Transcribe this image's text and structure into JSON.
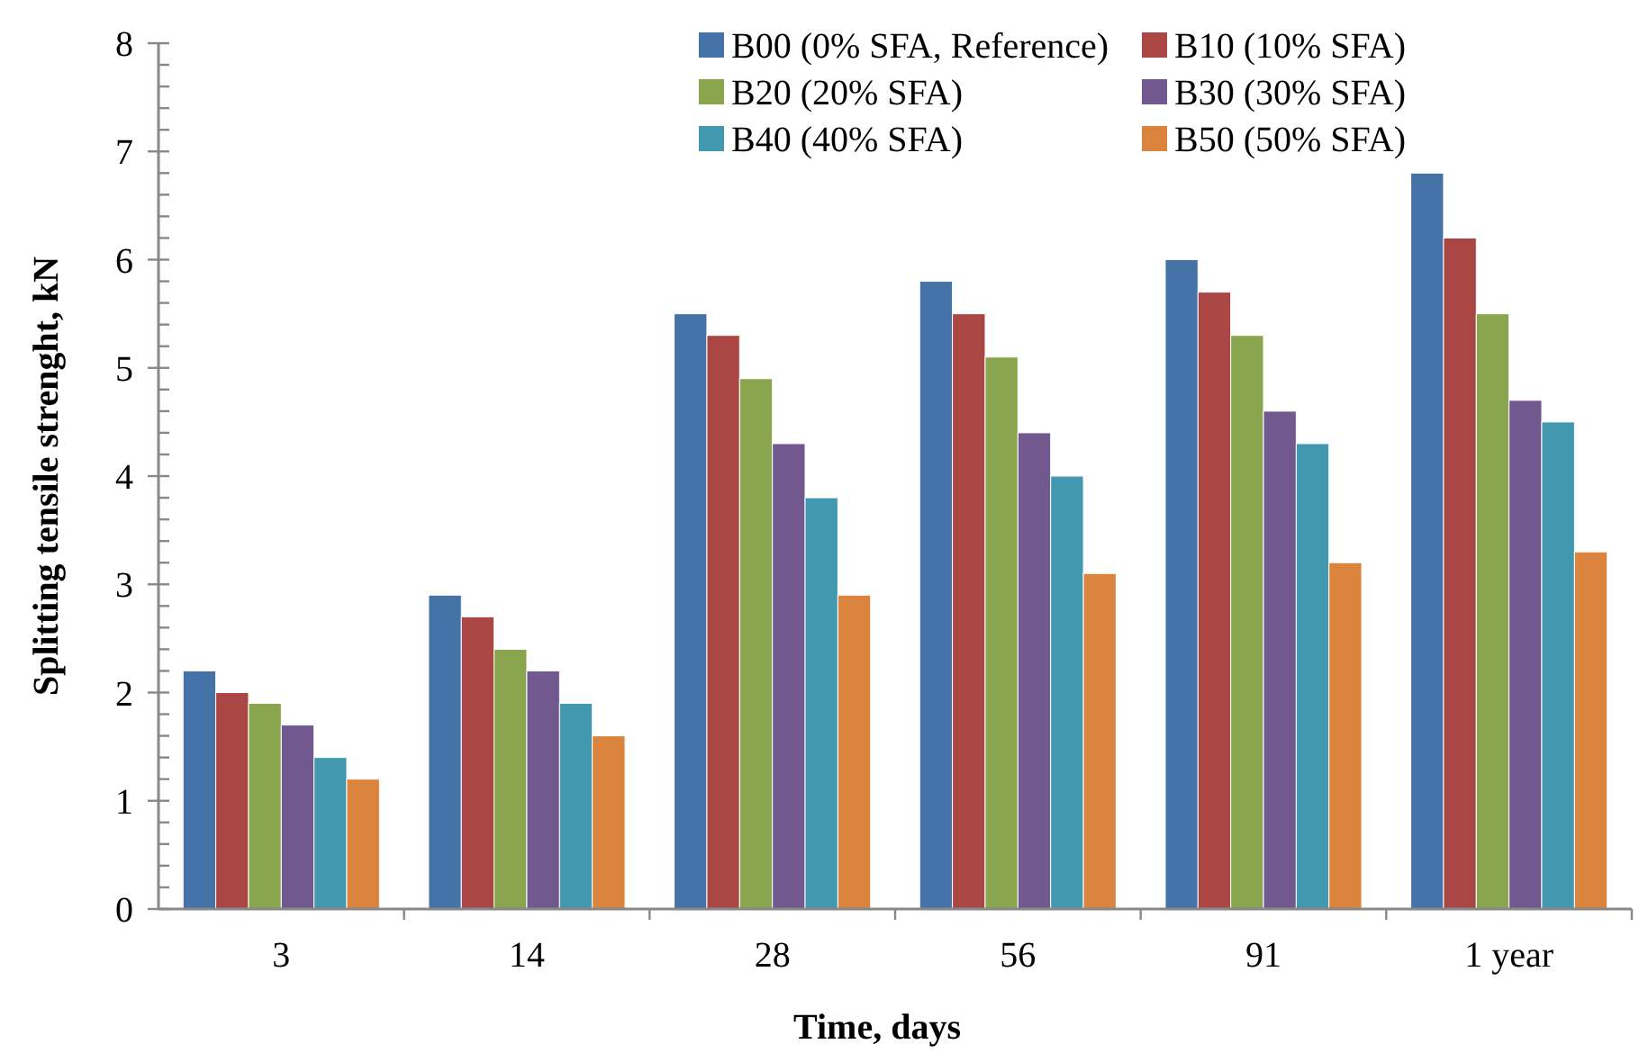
{
  "chart_data": {
    "type": "bar",
    "xlabel": "Time, days",
    "ylabel": "Splitting tensile strenght, kN",
    "categories": [
      "3",
      "14",
      "28",
      "56",
      "91",
      "1 year"
    ],
    "series": [
      {
        "name": "B00 (0% SFA, Reference)",
        "color": "#4572a7",
        "values": [
          2.2,
          2.9,
          5.5,
          5.8,
          6.0,
          6.8
        ]
      },
      {
        "name": "B10 (10% SFA)",
        "color": "#aa4643",
        "values": [
          2.0,
          2.7,
          5.3,
          5.5,
          5.7,
          6.2
        ]
      },
      {
        "name": "B20 (20% SFA)",
        "color": "#89a54e",
        "values": [
          1.9,
          2.4,
          4.9,
          5.1,
          5.3,
          5.5
        ]
      },
      {
        "name": "B30 (30% SFA)",
        "color": "#71588f",
        "values": [
          1.7,
          2.2,
          4.3,
          4.4,
          4.6,
          4.7
        ]
      },
      {
        "name": "B40 (40% SFA)",
        "color": "#4198af",
        "values": [
          1.4,
          1.9,
          3.8,
          4.0,
          4.3,
          4.5
        ]
      },
      {
        "name": "B50 (50% SFA)",
        "color": "#db843d",
        "values": [
          1.2,
          1.6,
          2.9,
          3.1,
          3.2,
          3.3
        ]
      }
    ],
    "ylim": [
      0,
      8
    ],
    "yticks": [
      0,
      {
        "value": 0.2,
        "label": null
      },
      {
        "value": 0.4,
        "label": null
      },
      {
        "value": 0.6,
        "label": null
      },
      {
        "value": 0.8,
        "label": null
      },
      1,
      {
        "value": 1.2,
        "label": null
      },
      {
        "value": 1.4,
        "label": null
      },
      {
        "value": 1.6,
        "label": null
      },
      {
        "value": 1.8,
        "label": null
      },
      2,
      {
        "value": 2.2,
        "label": null
      },
      {
        "value": 2.4,
        "label": null
      },
      {
        "value": 2.6,
        "label": null
      },
      {
        "value": 2.8,
        "label": null
      },
      3,
      {
        "value": 3.2,
        "label": null
      },
      {
        "value": 3.4,
        "label": null
      },
      {
        "value": 3.6,
        "label": null
      },
      {
        "value": 3.8,
        "label": null
      },
      4,
      {
        "value": 4.2,
        "label": null
      },
      {
        "value": 4.4,
        "label": null
      },
      {
        "value": 4.6,
        "label": null
      },
      {
        "value": 4.8,
        "label": null
      },
      5,
      {
        "value": 5.2,
        "label": null
      },
      {
        "value": 5.4,
        "label": null
      },
      {
        "value": 5.6,
        "label": null
      },
      {
        "value": 5.8,
        "label": null
      },
      6,
      {
        "value": 6.2,
        "label": null
      },
      {
        "value": 6.4,
        "label": null
      },
      {
        "value": 6.6,
        "label": null
      },
      {
        "value": 6.8,
        "label": null
      },
      7,
      {
        "value": 7.2,
        "label": null
      },
      {
        "value": 7.4,
        "label": null
      },
      {
        "value": 7.6,
        "label": null
      },
      {
        "value": 7.8,
        "label": null
      },
      8
    ],
    "grid": false,
    "legend": "top"
  }
}
